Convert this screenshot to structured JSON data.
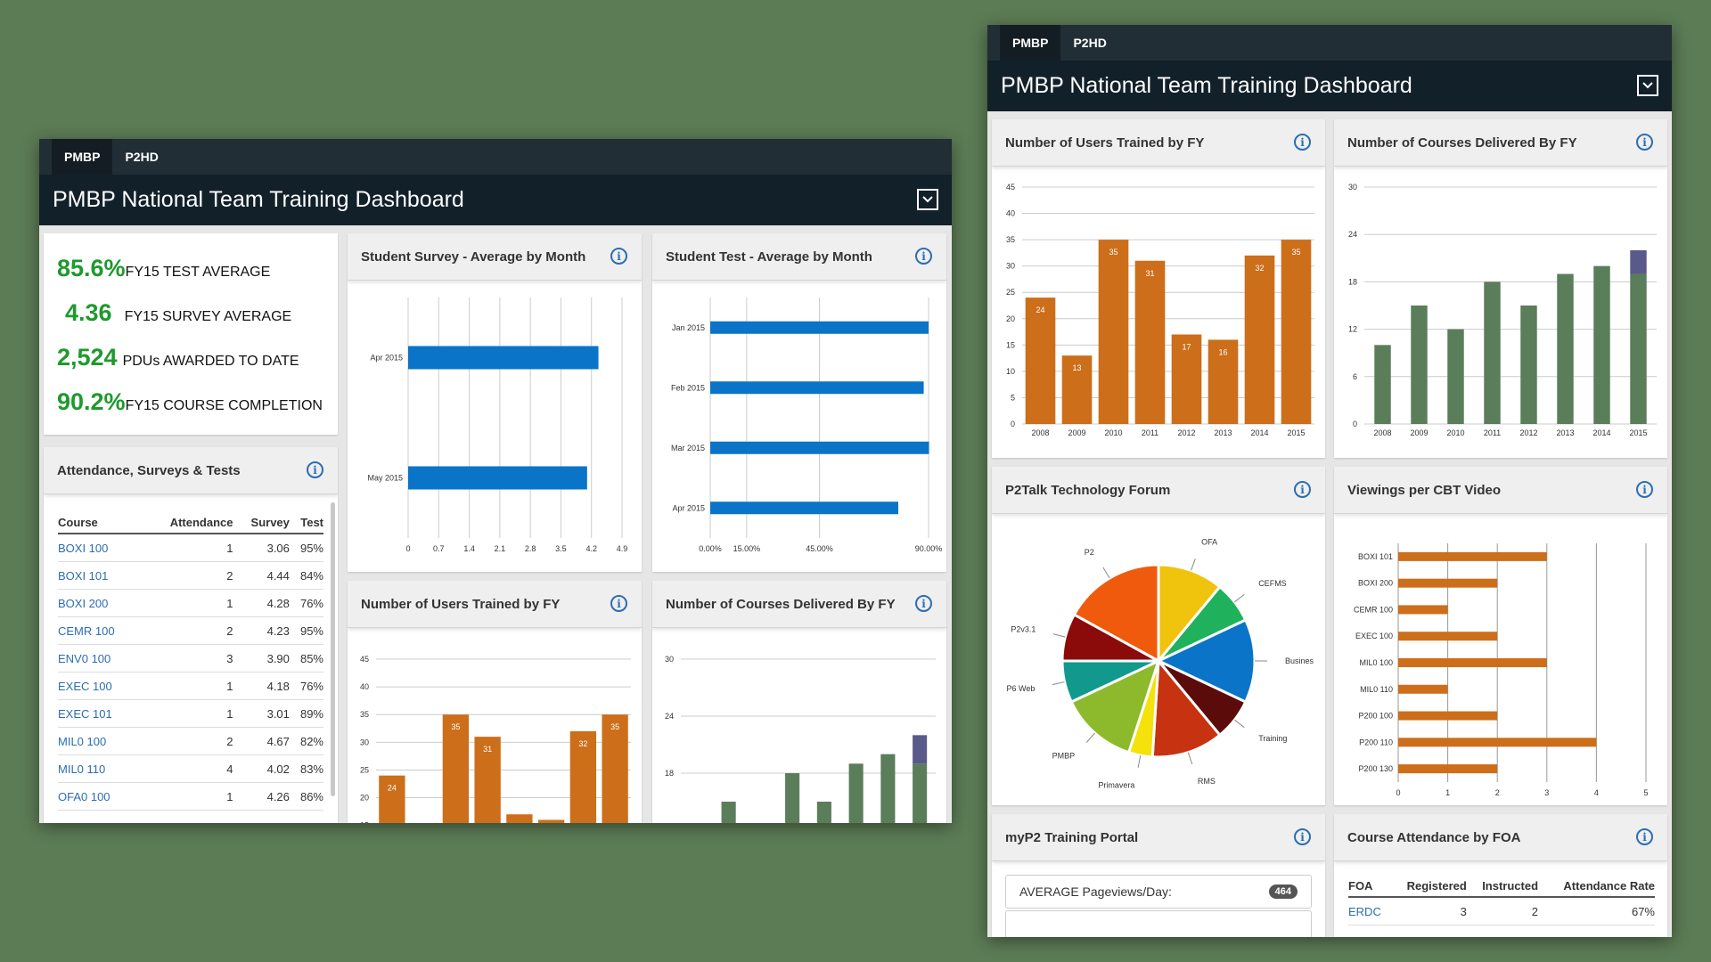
{
  "left": {
    "tabs": [
      {
        "label": "PMBP"
      },
      {
        "label": "P2HD"
      }
    ],
    "title": "PMBP National Team Training Dashboard",
    "stats": [
      {
        "value": "85.6%",
        "label": "FY15 TEST AVERAGE"
      },
      {
        "value": "4.36",
        "label": "FY15 SURVEY AVERAGE"
      },
      {
        "value": "2,524",
        "label": "PDUs AWARDED TO DATE"
      },
      {
        "value": "90.2%",
        "label": "FY15 COURSE COMPLETION"
      }
    ],
    "attendance": {
      "title": "Attendance, Surveys & Tests",
      "headers": [
        "Course",
        "Attendance",
        "Survey",
        "Test"
      ],
      "rows": [
        [
          "BOXI 100",
          "1",
          "3.06",
          "95%"
        ],
        [
          "BOXI 101",
          "2",
          "4.44",
          "84%"
        ],
        [
          "BOXI 200",
          "1",
          "4.28",
          "76%"
        ],
        [
          "CEMR 100",
          "2",
          "4.23",
          "95%"
        ],
        [
          "ENV0 100",
          "3",
          "3.90",
          "85%"
        ],
        [
          "EXEC 100",
          "1",
          "4.18",
          "76%"
        ],
        [
          "EXEC 101",
          "1",
          "3.01",
          "89%"
        ],
        [
          "MIL0 100",
          "2",
          "4.67",
          "82%"
        ],
        [
          "MIL0 110",
          "4",
          "4.02",
          "83%"
        ],
        [
          "OFA0 100",
          "1",
          "4.26",
          "86%"
        ]
      ]
    },
    "panels": {
      "survey_title": "Student Survey - Average by Month",
      "test_title": "Student Test - Average by Month",
      "users_title": "Number of Users Trained by FY",
      "courses_title": "Number of Courses Delivered By FY"
    }
  },
  "right": {
    "tabs": [
      {
        "label": "PMBP"
      },
      {
        "label": "P2HD"
      }
    ],
    "title": "PMBP National Team Training Dashboard",
    "panels": {
      "users_title": "Number of Users Trained by FY",
      "courses_title": "Number of Courses Delivered By FY",
      "forum_title": "P2Talk Technology Forum",
      "cbt_title": "Viewings per CBT Video",
      "portal_title": "myP2 Training Portal",
      "foa_title": "Course Attendance by FOA"
    },
    "portal": {
      "rows": [
        {
          "label": "AVERAGE Pageviews/Day:",
          "badge": "464"
        }
      ]
    },
    "foa": {
      "headers": [
        "FOA",
        "Registered",
        "Instructed",
        "Attendance Rate"
      ],
      "rows": [
        [
          "ERDC",
          "3",
          "2",
          "67%"
        ]
      ]
    }
  },
  "colors": {
    "orange": "#cc6e1a",
    "green": "#5a7d5a",
    "purple": "#5a5a8a",
    "blue": "#0a74c8",
    "stat_green": "#1e9a2c",
    "link": "#2b6db3"
  },
  "chart_data": [
    {
      "id": "survey",
      "type": "bar",
      "orientation": "horizontal",
      "title": "Student Survey - Average by Month",
      "categories": [
        "Apr 2015",
        "May 2015"
      ],
      "values": [
        4.36,
        4.1
      ],
      "xticks": [
        "0",
        "0.7",
        "1.4",
        "2.1",
        "2.8",
        "3.5",
        "4.2",
        "4.9"
      ],
      "xlim": [
        0,
        4.9
      ],
      "grid": true
    },
    {
      "id": "test",
      "type": "bar",
      "orientation": "horizontal",
      "title": "Student Test - Average by Month",
      "categories": [
        "Jan 2015",
        "Feb 2015",
        "Mar 2015",
        "Apr 2015"
      ],
      "values": [
        90.0,
        88.0,
        90.2,
        77.5
      ],
      "xticks": [
        "0.00%",
        "15.00%",
        "45.00%",
        "90.00%"
      ],
      "xlim": [
        0,
        90
      ],
      "grid": true
    },
    {
      "id": "users",
      "type": "bar",
      "title": "Number of Users Trained by FY",
      "categories": [
        "2008",
        "2009",
        "2010",
        "2011",
        "2012",
        "2013",
        "2014",
        "2015"
      ],
      "values": [
        24,
        13,
        35,
        31,
        17,
        16,
        32,
        35
      ],
      "data_labels": [
        "24",
        "13",
        "35",
        "31",
        "17",
        "16",
        "32",
        "35"
      ],
      "yticks": [
        "0",
        "5",
        "10",
        "15",
        "20",
        "25",
        "30",
        "35",
        "40",
        "45"
      ],
      "ylim": [
        0,
        45
      ],
      "grid": true
    },
    {
      "id": "courses",
      "type": "bar",
      "stacked": true,
      "title": "Number of Courses Delivered By FY",
      "categories": [
        "2008",
        "2009",
        "2010",
        "2011",
        "2012",
        "2013",
        "2014",
        "2015"
      ],
      "series": [
        {
          "values": [
            10,
            15,
            12,
            18,
            15,
            19,
            20,
            19
          ]
        },
        {
          "values": [
            0,
            0,
            0,
            0,
            0,
            0,
            0,
            3
          ]
        }
      ],
      "yticks": [
        "0",
        "6",
        "12",
        "18",
        "24",
        "30"
      ],
      "ylim": [
        0,
        30
      ],
      "grid": true
    },
    {
      "id": "forum",
      "type": "pie",
      "title": "P2Talk Technology Forum",
      "labels": [
        "OFA",
        "CEFMS",
        "Busines",
        "Training",
        "RMS",
        "Primavera",
        "PMBP",
        "P6 Web",
        "P2v3.1",
        "P2"
      ],
      "values": [
        11,
        7,
        14,
        7,
        12,
        4,
        13,
        7,
        8,
        17
      ]
    },
    {
      "id": "cbt",
      "type": "bar",
      "orientation": "horizontal",
      "title": "Viewings per CBT Video",
      "categories": [
        "BOXI 101",
        "BOXI 200",
        "CEMR 100",
        "EXEC 100",
        "MIL0 100",
        "MIL0 110",
        "P200 100",
        "P200 110",
        "P200 130"
      ],
      "values": [
        3,
        2,
        1,
        2,
        3,
        1,
        2,
        4,
        2
      ],
      "xticks": [
        "0",
        "1",
        "2",
        "3",
        "4",
        "5"
      ],
      "xlim": [
        0,
        5
      ],
      "grid": true
    }
  ]
}
